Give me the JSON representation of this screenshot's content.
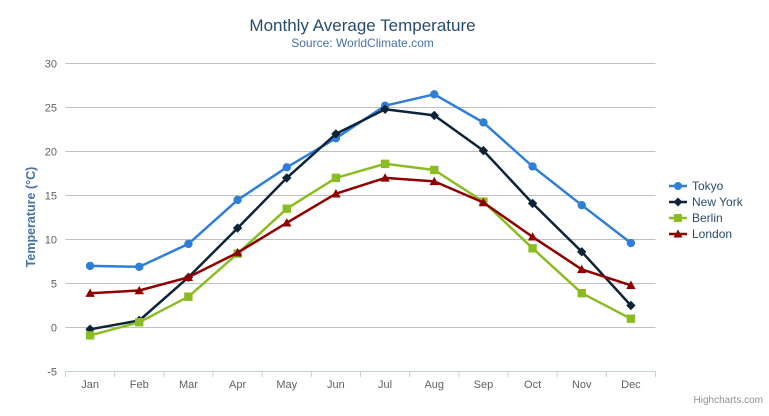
{
  "header": {
    "menu_icon": "hamburger-icon"
  },
  "chart_data": {
    "type": "line",
    "title": "Monthly Average Temperature",
    "subtitle": "Source: WorldClimate.com",
    "categories": [
      "Jan",
      "Feb",
      "Mar",
      "Apr",
      "May",
      "Jun",
      "Jul",
      "Aug",
      "Sep",
      "Oct",
      "Nov",
      "Dec"
    ],
    "xlabel": "",
    "ylabel": "Temperature (°C)",
    "ylim": [
      -5,
      30
    ],
    "yticks": [
      -5,
      0,
      5,
      10,
      15,
      20,
      25,
      30
    ],
    "grid": true,
    "legend_position": "right",
    "series": [
      {
        "name": "Tokyo",
        "color": "#2f7ed8",
        "marker": "circle",
        "values": [
          7.0,
          6.9,
          9.5,
          14.5,
          18.2,
          21.5,
          25.2,
          26.5,
          23.3,
          18.3,
          13.9,
          9.6
        ]
      },
      {
        "name": "New York",
        "color": "#0d233a",
        "marker": "diamond",
        "values": [
          -0.2,
          0.8,
          5.7,
          11.3,
          17.0,
          22.0,
          24.8,
          24.1,
          20.1,
          14.1,
          8.6,
          2.5
        ]
      },
      {
        "name": "Berlin",
        "color": "#8bbc21",
        "marker": "square",
        "values": [
          -0.9,
          0.6,
          3.5,
          8.4,
          13.5,
          17.0,
          18.6,
          17.9,
          14.3,
          9.0,
          3.9,
          1.0
        ]
      },
      {
        "name": "London",
        "color": "#910000",
        "marker": "triangle",
        "values": [
          3.9,
          4.2,
          5.7,
          8.5,
          11.9,
          15.2,
          17.0,
          16.6,
          14.2,
          10.3,
          6.6,
          4.8
        ]
      }
    ],
    "axis_colors": {
      "grid_line": "#C0C0C0",
      "axis_line": "#C0D0E0",
      "label": "#606060"
    }
  },
  "credits": {
    "label": "Highcharts.com"
  }
}
